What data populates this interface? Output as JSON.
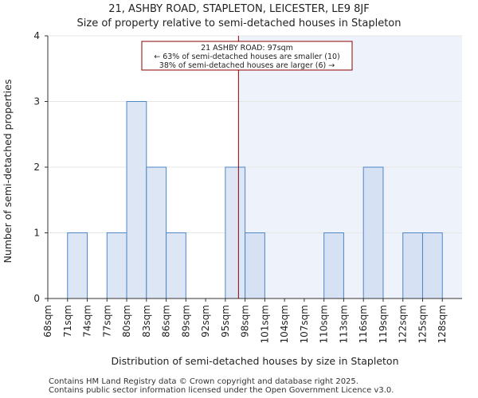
{
  "chart_data": {
    "type": "bar",
    "title_lines": [
      "21, ASHBY ROAD, STAPLETON, LEICESTER, LE9 8JF",
      "Size of property relative to semi-detached houses in Stapleton"
    ],
    "xlabel": "Distribution of semi-detached houses by size in Stapleton",
    "ylabel": "Number of semi-detached properties",
    "categories": [
      "68sqm",
      "71sqm",
      "74sqm",
      "77sqm",
      "80sqm",
      "83sqm",
      "86sqm",
      "89sqm",
      "92sqm",
      "95sqm",
      "98sqm",
      "101sqm",
      "104sqm",
      "107sqm",
      "110sqm",
      "113sqm",
      "116sqm",
      "119sqm",
      "122sqm",
      "125sqm",
      "128sqm"
    ],
    "bin_edges": [
      68,
      71,
      74,
      77,
      80,
      83,
      86,
      89,
      92,
      95,
      98,
      101,
      104,
      107,
      110,
      113,
      116,
      119,
      122,
      125,
      128,
      131
    ],
    "values": [
      0,
      1,
      0,
      1,
      3,
      2,
      1,
      0,
      0,
      2,
      1,
      0,
      0,
      0,
      1,
      0,
      2,
      0,
      1,
      1,
      0
    ],
    "ylim": [
      0,
      4
    ],
    "yticks": [
      0,
      1,
      2,
      3,
      4
    ],
    "marker": {
      "value": 97,
      "lines": [
        "21 ASHBY ROAD: 97sqm",
        "← 63% of semi-detached houses are smaller (10)",
        "38% of semi-detached houses are larger (6) →"
      ]
    },
    "colors": {
      "bar_fill": "#dce6f4",
      "bar_fill_highlight": "#d6e1f3",
      "bar_edge": "#4f86c6",
      "marker_line": "#8b0000",
      "annotation_border": "#8b0000",
      "shade_fill": "#eef2fb"
    }
  },
  "footer": {
    "line1": "Contains HM Land Registry data © Crown copyright and database right 2025.",
    "line2": "Contains public sector information licensed under the Open Government Licence v3.0."
  }
}
